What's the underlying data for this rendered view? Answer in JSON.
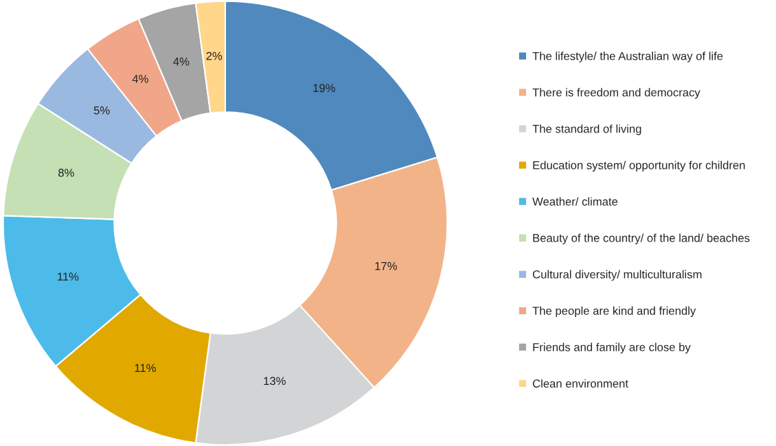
{
  "chart_data": {
    "type": "donut",
    "categories": [
      "The lifestyle/ the Australian way of life",
      "There is freedom and democracy",
      "The standard of living",
      "Education system/ opportunity for children",
      "Weather/ climate",
      "Beauty of the country/ of the land/ beaches",
      "Cultural diversity/ multiculturalism",
      "The people are kind and friendly",
      "Friends and family are close by",
      "Clean environment"
    ],
    "values": [
      19,
      17,
      13,
      11,
      11,
      8,
      5,
      4,
      4,
      2
    ],
    "value_labels": [
      "19%",
      "17%",
      "13%",
      "11%",
      "11%",
      "8%",
      "5%",
      "4%",
      "4%",
      "2%"
    ],
    "colors": [
      "#4f89be",
      "#f3b388",
      "#d3d4d6",
      "#e1a900",
      "#4dbbe9",
      "#c5e0b4",
      "#9ab9e0",
      "#f1a689",
      "#a5a5a5",
      "#ffd68a"
    ],
    "legend": "right"
  }
}
